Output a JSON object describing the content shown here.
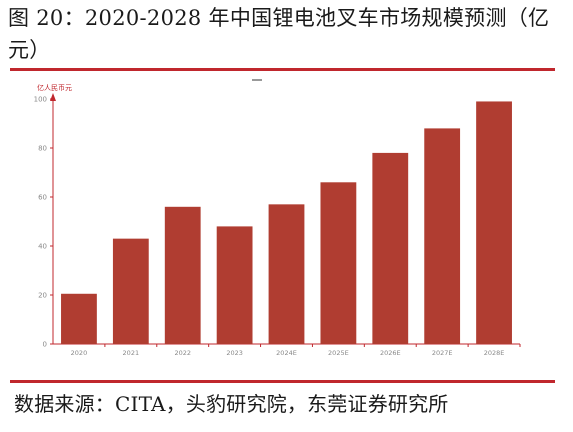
{
  "figure": {
    "title": "图 20：2020-2028 年中国锂电池叉车市场规模预测（亿元）",
    "source": "数据来源：CITA，头豹研究院，东莞证券研究所"
  },
  "colors": {
    "bar": "#b03d31",
    "rule": "#c0272d",
    "axis": "#c0272d",
    "tick_text": "#888888"
  },
  "chart_data": {
    "type": "bar",
    "ylabel": "亿人民币元",
    "categories": [
      "2020",
      "2021",
      "2022",
      "2023",
      "2024E",
      "2025E",
      "2026E",
      "2027E",
      "2028E"
    ],
    "values": [
      20.5,
      43,
      56,
      48,
      57,
      66,
      78,
      88,
      99
    ],
    "ylim": [
      0,
      100
    ],
    "yticks": [
      0,
      20,
      40,
      60,
      80,
      100
    ],
    "grid": false,
    "legend": "none"
  }
}
